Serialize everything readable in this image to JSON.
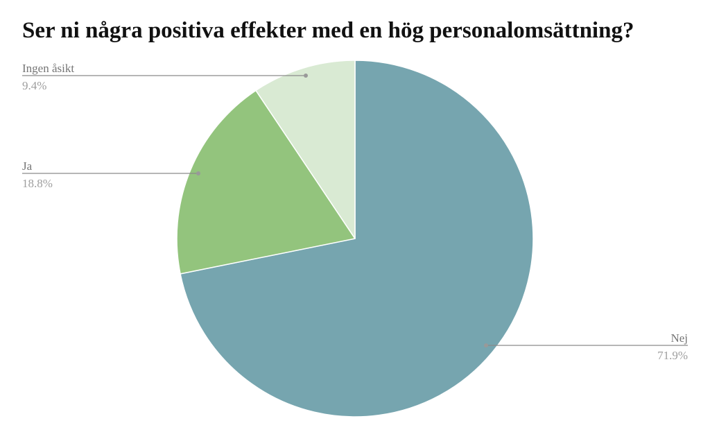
{
  "chart_data": {
    "type": "pie",
    "title": "Ser ni några positiva effekter med en hög personalomsättning?",
    "slices": [
      {
        "label": "Nej",
        "value": 71.9,
        "value_label": "71.9%",
        "color": "#76a5af"
      },
      {
        "label": "Ja",
        "value": 18.8,
        "value_label": "18.8%",
        "color": "#93c47d"
      },
      {
        "label": "Ingen åsikt",
        "value": 9.4,
        "value_label": "9.4%",
        "color": "#d9ead3"
      }
    ],
    "start": "12 o'clock",
    "direction": "clockwise",
    "legend": "none",
    "labels": "outside with leader lines"
  }
}
